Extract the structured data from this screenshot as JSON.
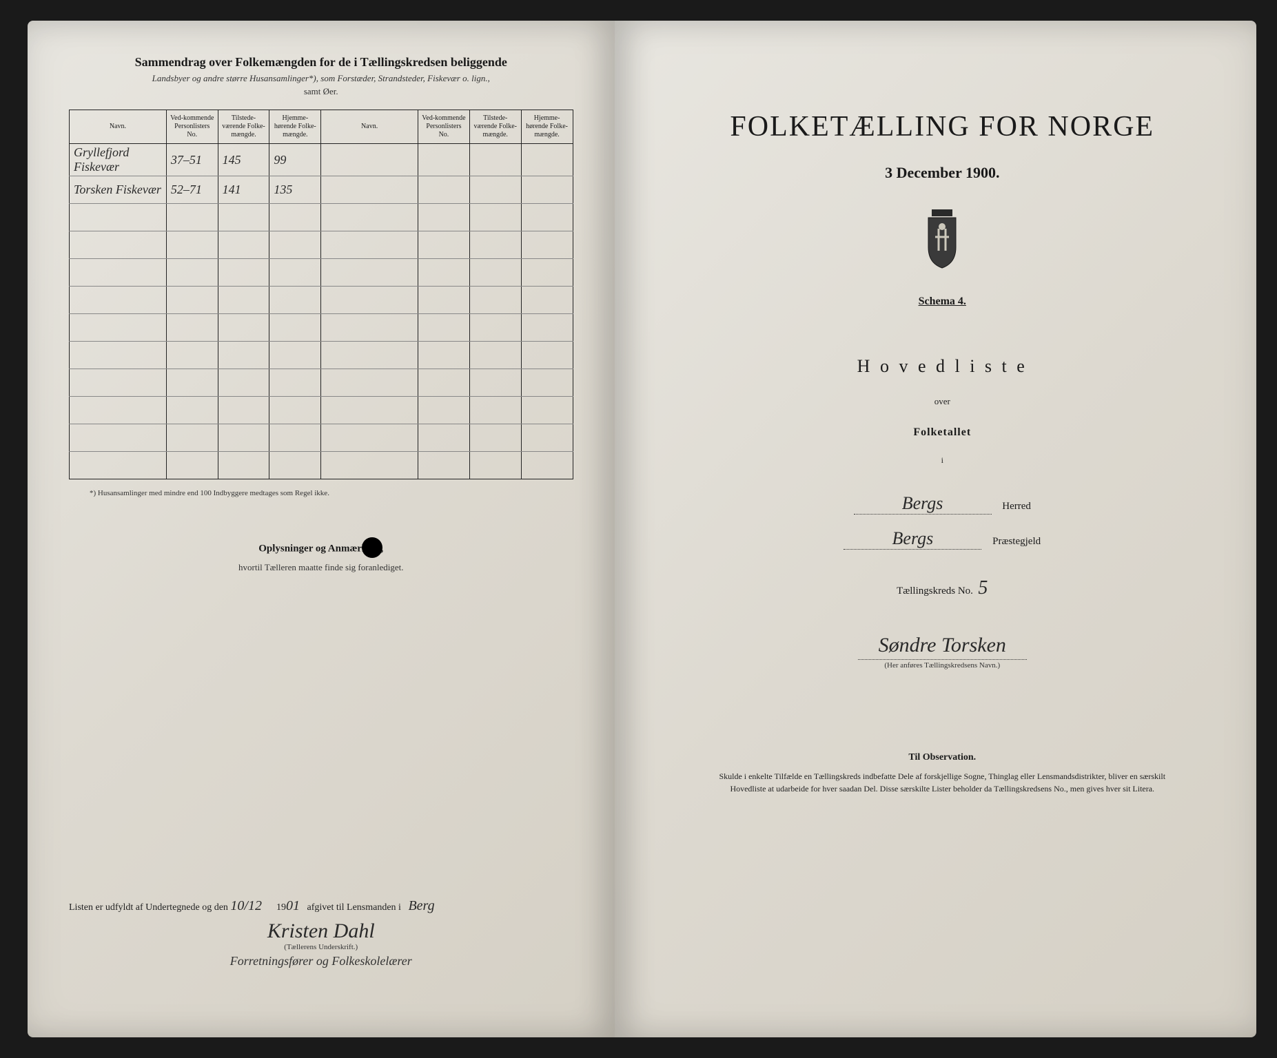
{
  "colors": {
    "page_bg_light": "#e8e6e0",
    "page_bg_dark": "#d5d0c5",
    "frame_bg": "#1a1a1a",
    "text_primary": "#1a1a1a",
    "text_secondary": "#333333",
    "handwriting": "#2a2a2a",
    "faded_pencil": "#888888",
    "rule_line": "#222222"
  },
  "left_page": {
    "header_title": "Sammendrag over Folkemængden for de i Tællingskredsen beliggende",
    "header_subtitle": "Landsbyer og andre større Husansamlinger*), som Forstæder, Strandsteder, Fiskevær o. lign.,",
    "header_samt": "samt Øer.",
    "table": {
      "columns": [
        "Navn.",
        "Ved-kommende Personlisters No.",
        "Tilstede-værende Folke-mængde.",
        "Hjemme-hørende Folke-mængde.",
        "Navn.",
        "Ved-kommende Personlisters No.",
        "Tilstede-værende Folke-mængde.",
        "Hjemme-hørende Folke-mængde."
      ],
      "rows": [
        {
          "navn": "Gryllefjord Fiskevær",
          "no": "37–51",
          "tilstede": "145",
          "hjemme": "99",
          "faded": true
        },
        {
          "navn": "Torsken Fiskevær",
          "no": "52–71",
          "tilstede": "141",
          "hjemme": "135",
          "faded": false
        }
      ],
      "blank_row_count": 10
    },
    "footnote": "*) Husansamlinger med mindre end 100 Indbyggere medtages som Regel ikke.",
    "oplysninger_title_pre": "Oplysninger og Anmærk",
    "oplysninger_title_post": "r,",
    "oplysninger_sub": "hvortil Tælleren maatte finde sig foranlediget.",
    "signature": {
      "line_pre": "Listen er udfyldt af Undertegnede og den",
      "date": "10/12",
      "year_pre": "19",
      "year_hand": "01",
      "line_post": "afgivet til Lensmanden i",
      "place": "Berg",
      "name": "Kristen Dahl",
      "caption": "(Tællerens Underskrift.)",
      "role": "Forretningsfører og Folkeskolelærer"
    }
  },
  "right_page": {
    "main_title": "FOLKETÆLLING FOR NORGE",
    "date_line": "3 December 1900.",
    "schema": "Schema 4.",
    "hovedliste": "H o v e d l i s t e",
    "over": "over",
    "folketallet": "Folketallet",
    "i": "i",
    "herred_value": "Bergs",
    "herred_label": "Herred",
    "prestegjeld_value": "Bergs",
    "prestegjeld_label": "Præstegjeld",
    "kreds_label": "Tællingskreds No.",
    "kreds_no": "5",
    "kreds_name": "Søndre Torsken",
    "kreds_caption": "(Her anføres Tællingskredsens Navn.)",
    "obs_title": "Til Observation.",
    "obs_text": "Skulde i enkelte Tilfælde en Tællingskreds indbefatte Dele af forskjellige Sogne, Thinglag eller Lensmandsdistrikter, bliver en særskilt Hovedliste at udarbeide for hver saadan Del. Disse særskilte Lister beholder da Tællingskredsens No., men gives hver sit Litera."
  }
}
